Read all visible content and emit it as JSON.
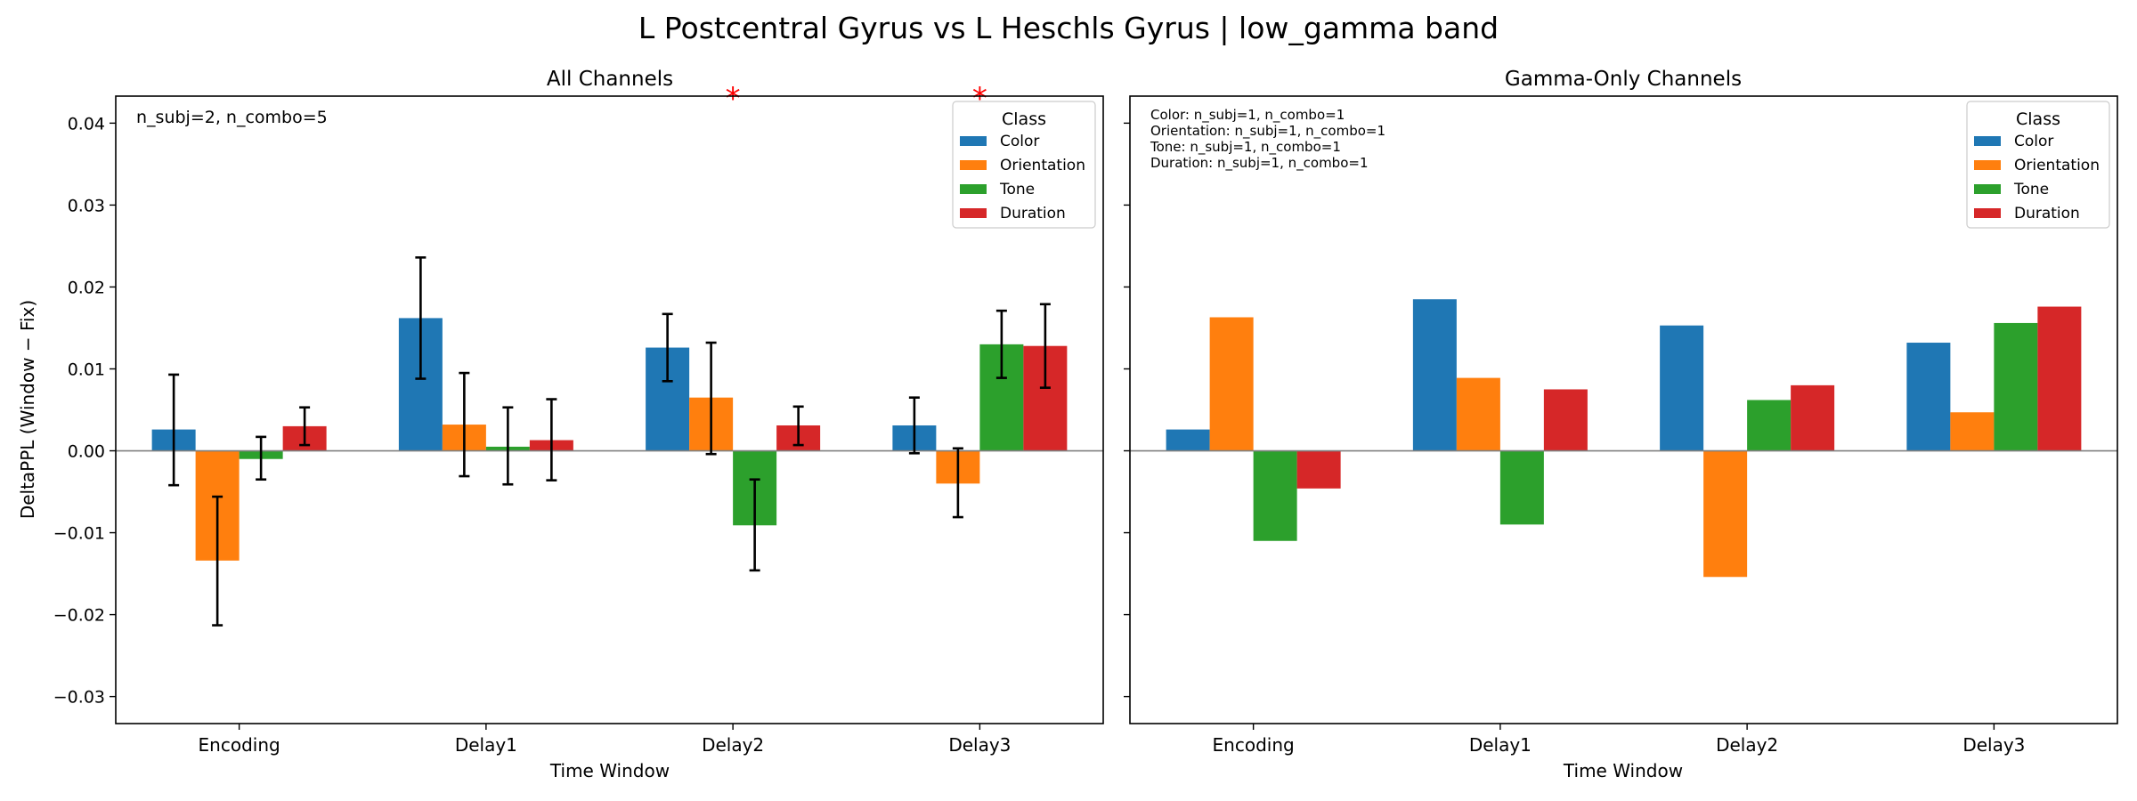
{
  "figure_title": "L Postcentral Gyrus vs L Heschls Gyrus  |  low_gamma band",
  "colors": {
    "Color": "#1f77b4",
    "Orientation": "#ff7f0e",
    "Tone": "#2ca02c",
    "Duration": "#d62728"
  },
  "chart_data": [
    {
      "type": "bar",
      "title": "All Channels",
      "xlabel": "Time Window",
      "ylabel": "DeltaPPL (Window − Fix)",
      "ylim": [
        -0.0333,
        0.0433
      ],
      "yticks": [
        -0.03,
        -0.02,
        -0.01,
        0.0,
        0.01,
        0.02,
        0.03,
        0.04
      ],
      "ytick_labels": [
        "−0.03",
        "−0.02",
        "−0.01",
        "0.00",
        "0.01",
        "0.02",
        "0.03",
        "0.04"
      ],
      "categories": [
        "Encoding",
        "Delay1",
        "Delay2",
        "Delay3"
      ],
      "series": [
        {
          "name": "Color",
          "values": [
            0.0026,
            0.0162,
            0.0126,
            0.0031
          ],
          "err_low": [
            -0.0042,
            0.0088,
            0.0085,
            -0.0003
          ],
          "err_high": [
            0.0093,
            0.0236,
            0.0167,
            0.0065
          ]
        },
        {
          "name": "Orientation",
          "values": [
            -0.0134,
            0.0032,
            0.0065,
            -0.004
          ],
          "err_low": [
            -0.0213,
            -0.0031,
            -0.0004,
            -0.0081
          ],
          "err_high": [
            -0.0056,
            0.0095,
            0.0132,
            0.0003
          ]
        },
        {
          "name": "Tone",
          "values": [
            -0.001,
            0.0005,
            -0.0091,
            0.013
          ],
          "err_low": [
            -0.0035,
            -0.0041,
            -0.0146,
            0.0089
          ],
          "err_high": [
            0.0017,
            0.0053,
            -0.0035,
            0.0171
          ]
        },
        {
          "name": "Duration",
          "values": [
            0.003,
            0.0013,
            0.0031,
            0.0128
          ],
          "err_low": [
            0.0007,
            -0.0036,
            0.0007,
            0.0077
          ],
          "err_high": [
            0.0053,
            0.0063,
            0.0054,
            0.0179
          ]
        }
      ],
      "significance": [
        {
          "category": "Delay2",
          "label": "*"
        },
        {
          "category": "Delay3",
          "label": "*"
        }
      ],
      "annotation": "n_subj=2, n_combo=5",
      "legend": {
        "title": "Class",
        "placement": "top-right"
      },
      "grid": false
    },
    {
      "type": "bar",
      "title": "Gamma-Only Channels",
      "xlabel": "Time Window",
      "ylabel": "",
      "ylim": [
        -0.0333,
        0.0433
      ],
      "categories": [
        "Encoding",
        "Delay1",
        "Delay2",
        "Delay3"
      ],
      "series": [
        {
          "name": "Color",
          "values": [
            0.0026,
            0.0185,
            0.0153,
            0.0132
          ]
        },
        {
          "name": "Orientation",
          "values": [
            0.0163,
            0.0089,
            -0.0154,
            0.0047
          ]
        },
        {
          "name": "Tone",
          "values": [
            -0.011,
            -0.009,
            0.0062,
            0.0156
          ]
        },
        {
          "name": "Duration",
          "values": [
            -0.0046,
            0.0075,
            0.008,
            0.0176
          ]
        }
      ],
      "annotations": [
        "Color: n_subj=1, n_combo=1",
        "Orientation: n_subj=1, n_combo=1",
        "Tone: n_subj=1, n_combo=1",
        "Duration: n_subj=1, n_combo=1"
      ],
      "legend": {
        "title": "Class",
        "placement": "top-right"
      },
      "grid": false
    }
  ]
}
